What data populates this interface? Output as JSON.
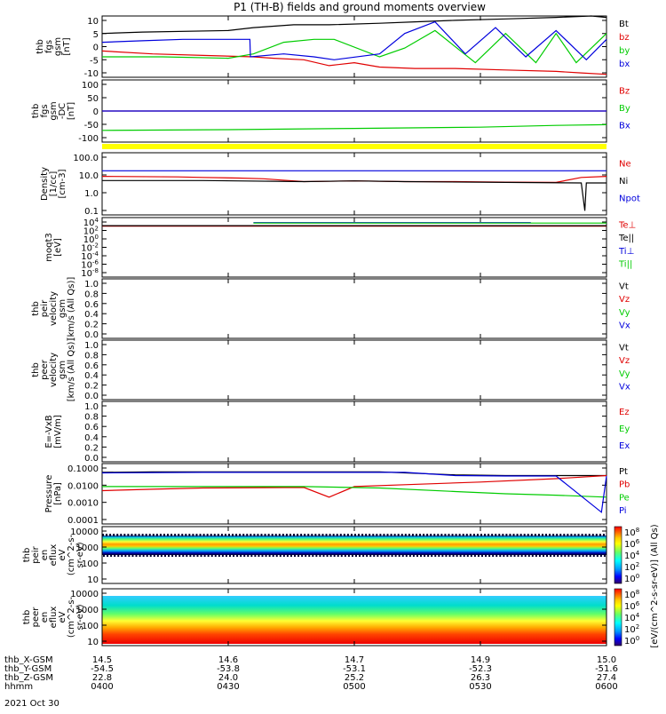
{
  "title": "P1 (TH-B) fields and ground moments overview",
  "date": "2021 Oct 30",
  "colors": {
    "black": "#000000",
    "red": "#e00000",
    "green": "#00cc00",
    "blue": "#0000dd",
    "yellow": "#ffff00"
  },
  "chart_data": [
    {
      "type": "line",
      "panel": "fgs",
      "ylabel_lines": [
        "thb",
        "fgs",
        "gsm",
        "[nT]"
      ],
      "yticks": [
        "10",
        "5",
        "0",
        "-5",
        "-10"
      ],
      "ylim": [
        -10,
        11
      ],
      "series": [
        {
          "name": "Bt",
          "color": "black",
          "x": [
            0,
            0.08,
            0.25,
            0.3,
            0.34,
            0.38,
            0.45,
            0.55,
            0.62,
            0.7,
            0.8,
            0.9,
            0.97,
            1.0
          ],
          "y": [
            5,
            5.5,
            6,
            7,
            7.5,
            8,
            8,
            8.5,
            9,
            9.5,
            10,
            10.5,
            11,
            10.5
          ]
        },
        {
          "name": "bz",
          "color": "red",
          "x": [
            0,
            0.1,
            0.2,
            0.3,
            0.34,
            0.4,
            0.45,
            0.5,
            0.55,
            0.62,
            0.7,
            0.8,
            0.9,
            0.95,
            1.0
          ],
          "y": [
            -1,
            -2,
            -2.5,
            -3,
            -3.5,
            -4,
            -6,
            -5,
            -6.5,
            -7,
            -7,
            -7.5,
            -8,
            -8.5,
            -9
          ]
        },
        {
          "name": "by",
          "color": "green",
          "x": [
            0,
            0.12,
            0.25,
            0.3,
            0.36,
            0.42,
            0.46,
            0.55,
            0.6,
            0.66,
            0.74,
            0.8,
            0.86,
            0.9,
            0.94,
            1.0
          ],
          "y": [
            -3,
            -3,
            -3.5,
            -2,
            2,
            3,
            3,
            -3,
            0,
            6,
            -5,
            5,
            -5,
            5,
            -5,
            5
          ]
        },
        {
          "name": "bx",
          "color": "blue",
          "x": [
            0,
            0.08,
            0.16,
            0.24,
            0.293,
            0.294,
            0.36,
            0.42,
            0.46,
            0.55,
            0.6,
            0.66,
            0.72,
            0.78,
            0.84,
            0.9,
            0.96,
            1.0
          ],
          "y": [
            2,
            2.5,
            3,
            3,
            3,
            -3,
            -2,
            -3,
            -4,
            -2,
            5,
            9,
            -2,
            7,
            -3,
            6,
            -4,
            3
          ]
        }
      ]
    },
    {
      "type": "line",
      "panel": "fgs-dc",
      "ylabel_lines": [
        "thb",
        "fgs",
        "gsm",
        "-DC",
        "[nT]"
      ],
      "yticks": [
        "100",
        "50",
        "0",
        "-50",
        "-100"
      ],
      "ylim": [
        -125,
        125
      ],
      "series": [
        {
          "name": "Bz",
          "color": "red",
          "x": [
            0,
            1
          ],
          "y": [
            0,
            0
          ]
        },
        {
          "name": "By",
          "color": "green",
          "x": [
            0,
            0.25,
            0.5,
            0.75,
            0.9,
            1.0
          ],
          "y": [
            -78,
            -75,
            -70,
            -65,
            -58,
            -55
          ]
        },
        {
          "name": "Bx",
          "color": "blue",
          "x": [
            0,
            1
          ],
          "y": [
            0,
            0
          ]
        }
      ]
    },
    {
      "type": "line",
      "panel": "density",
      "scale": "log",
      "ylabel_lines": [
        "Density",
        "[1/cc]",
        "[cm-3]"
      ],
      "yticks": [
        "100.0",
        "10.0",
        "1.0",
        "0.1"
      ],
      "ylim": [
        0.01,
        300
      ],
      "series": [
        {
          "name": "Ne",
          "color": "red",
          "x": [
            0,
            0.15,
            0.2,
            0.27,
            0.32,
            0.37,
            0.4,
            0.5,
            0.6,
            0.7,
            0.8,
            0.9,
            0.95,
            1.0
          ],
          "y": [
            6,
            5.5,
            5,
            4.5,
            4,
            3,
            2.5,
            2.8,
            2.5,
            2.5,
            2.3,
            2.2,
            5,
            6
          ]
        },
        {
          "name": "Ni",
          "color": "black",
          "x": [
            0,
            0.2,
            0.4,
            0.5,
            0.6,
            0.8,
            0.95,
            0.957,
            0.96,
            1.0
          ],
          "y": [
            3,
            3,
            2.5,
            2.8,
            2.5,
            2.2,
            2,
            0.02,
            2,
            2
          ]
        },
        {
          "name": "Npot",
          "color": "blue",
          "x": [
            0,
            0.25,
            0.26,
            1.0
          ],
          "y": [
            15,
            15,
            15,
            15
          ]
        }
      ]
    },
    {
      "type": "line",
      "panel": "moqt3",
      "ylabel_lines": [
        "moqt3",
        "[eV]"
      ],
      "yticks": [
        "10^4",
        "10^2",
        "10^0",
        "10^-2",
        "10^-4",
        "10^-6",
        "10^-8"
      ],
      "ylim": [
        -9,
        5
      ],
      "series": [
        {
          "name": "Te⊥",
          "color": "red",
          "x": [
            0,
            1
          ],
          "y": [
            3,
            3
          ]
        },
        {
          "name": "Te||",
          "color": "black",
          "x": [
            0,
            1
          ],
          "y": [
            3.1,
            3.1
          ]
        },
        {
          "name": "Ti⊥",
          "color": "blue",
          "x": [
            0.3,
            0.85
          ],
          "y": [
            3.8,
            3.8
          ]
        },
        {
          "name": "Ti||",
          "color": "green",
          "x": [
            0.3,
            1
          ],
          "y": [
            3.7,
            3.7
          ]
        }
      ]
    },
    {
      "type": "line",
      "panel": "peir",
      "ylabel_lines": [
        "thb",
        "peir",
        "velocity",
        "gsm",
        "[km/s (All Qs)]"
      ],
      "yticks": [
        "1.0",
        "0.8",
        "0.6",
        "0.4",
        "0.2",
        "0.0"
      ],
      "ylim": [
        0,
        1
      ],
      "series": [
        {
          "name": "Vt",
          "color": "black",
          "x": [],
          "y": []
        },
        {
          "name": "Vz",
          "color": "red",
          "x": [],
          "y": []
        },
        {
          "name": "Vy",
          "color": "green",
          "x": [],
          "y": []
        },
        {
          "name": "Vx",
          "color": "blue",
          "x": [],
          "y": []
        }
      ]
    },
    {
      "type": "line",
      "panel": "peer",
      "ylabel_lines": [
        "thb",
        "peer",
        "velocity",
        "gsm",
        "[km/s (All Qs)]"
      ],
      "yticks": [
        "1.0",
        "0.8",
        "0.6",
        "0.4",
        "0.2",
        "0.0"
      ],
      "ylim": [
        0,
        1
      ],
      "series": [
        {
          "name": "Vt",
          "color": "black",
          "x": [],
          "y": []
        },
        {
          "name": "Vz",
          "color": "red",
          "x": [],
          "y": []
        },
        {
          "name": "Vy",
          "color": "green",
          "x": [],
          "y": []
        },
        {
          "name": "Vx",
          "color": "blue",
          "x": [],
          "y": []
        }
      ]
    },
    {
      "type": "line",
      "panel": "efield",
      "ylabel_lines": [
        "E=-VxB",
        "[mV/m]"
      ],
      "yticks": [
        "1.0",
        "0.8",
        "0.6",
        "0.4",
        "0.2",
        "0.0"
      ],
      "ylim": [
        0,
        1
      ],
      "series": [
        {
          "name": "Ez",
          "color": "red",
          "x": [],
          "y": []
        },
        {
          "name": "Ey",
          "color": "green",
          "x": [],
          "y": []
        },
        {
          "name": "Ex",
          "color": "blue",
          "x": [],
          "y": []
        }
      ]
    },
    {
      "type": "line",
      "panel": "pressure",
      "scale": "log",
      "ylabel_lines": [
        "Pressure",
        "[nPa]"
      ],
      "yticks": [
        "0.1000",
        "0.0100",
        "0.0010",
        "0.0001"
      ],
      "ylim": [
        5e-05,
        0.5
      ],
      "series": [
        {
          "name": "Pt",
          "color": "black",
          "x": [
            0,
            0.1,
            0.2,
            0.4,
            0.55,
            0.7,
            0.8,
            0.9,
            1.0
          ],
          "y": [
            0.13,
            0.14,
            0.14,
            0.14,
            0.14,
            0.09,
            0.08,
            0.08,
            0.08
          ]
        },
        {
          "name": "Pb",
          "color": "red",
          "x": [
            0,
            0.1,
            0.2,
            0.4,
            0.45,
            0.5,
            0.6,
            0.75,
            0.9,
            1.0
          ],
          "y": [
            0.008,
            0.01,
            0.012,
            0.013,
            0.003,
            0.015,
            0.02,
            0.03,
            0.05,
            0.08
          ]
        },
        {
          "name": "Pe",
          "color": "green",
          "x": [
            0,
            0.2,
            0.4,
            0.55,
            0.7,
            0.8,
            0.9,
            1.0
          ],
          "y": [
            0.015,
            0.015,
            0.015,
            0.012,
            0.007,
            0.005,
            0.004,
            0.003
          ]
        },
        {
          "name": "Pi",
          "color": "blue",
          "x": [
            0,
            0.2,
            0.4,
            0.6,
            0.7,
            0.8,
            0.9,
            0.99,
            1.0
          ],
          "y": [
            0.12,
            0.13,
            0.13,
            0.13,
            0.08,
            0.075,
            0.075,
            0.0003,
            0.075
          ]
        }
      ]
    },
    {
      "type": "heatmap",
      "panel": "peir-en",
      "ylabel_lines": [
        "thb",
        "peir",
        "en",
        "eflux",
        "eV",
        "(cm^2-s-",
        "sr-eV)"
      ],
      "yticks": [
        "10000",
        "1000",
        "100",
        "10"
      ],
      "ylim": [
        5,
        10000
      ]
    },
    {
      "type": "heatmap",
      "panel": "peer-en",
      "ylabel_lines": [
        "thb",
        "peer",
        "en",
        "eflux",
        "eV",
        "(cm^2-s-",
        "sr-eV)"
      ],
      "yticks": [
        "10000",
        "1000",
        "100",
        "10"
      ],
      "ylim": [
        5,
        10000
      ]
    }
  ],
  "colorbar": {
    "ticks": [
      "10^8",
      "10^6",
      "10^4",
      "10^2",
      "10^0"
    ],
    "label": "[eV/(cm^2-s-sr-eV)] (All Qs)"
  },
  "xaxis": {
    "row_labels": [
      "thb_X-GSM",
      "thb_Y-GSM",
      "thb_Z-GSM",
      "hhmm"
    ],
    "columns": [
      [
        "14.5",
        "-54.5",
        "22.8",
        "0400"
      ],
      [
        "14.6",
        "-53.8",
        "24.0",
        "0430"
      ],
      [
        "14.7",
        "-53.1",
        "25.2",
        "0500"
      ],
      [
        "14.9",
        "-52.3",
        "26.3",
        "0530"
      ],
      [
        "15.0",
        "-51.6",
        "27.4",
        "0600"
      ]
    ]
  }
}
